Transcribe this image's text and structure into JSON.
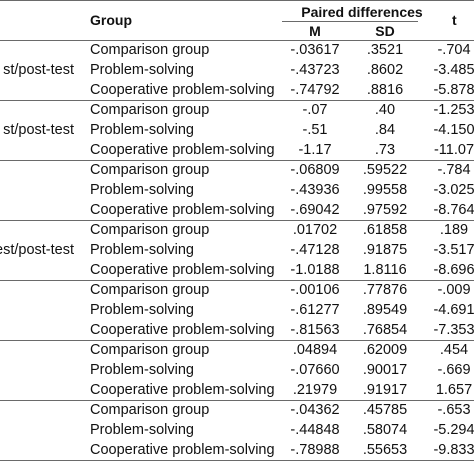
{
  "header": {
    "group": "Group",
    "paired_differences": "Paired differences",
    "m": "M",
    "sd": "SD",
    "t": "t"
  },
  "blocks": [
    {
      "label": "st/post-test",
      "rows": [
        {
          "group": "Comparison group",
          "m": "-.03617",
          "sd": ".3521",
          "t": "-.704"
        },
        {
          "group": "Problem-solving",
          "m": "-.43723",
          "sd": ".8602",
          "t": "-3.485"
        },
        {
          "group": "Cooperative problem-solving",
          "m": "-.74792",
          "sd": ".8816",
          "t": "-5.878"
        }
      ]
    },
    {
      "label": "st/post-test",
      "rows": [
        {
          "group": "Comparison group",
          "m": "-.07",
          "sd": ".40",
          "t": "-1.253"
        },
        {
          "group": "Problem-solving",
          "m": "-.51",
          "sd": ".84",
          "t": "-4.150"
        },
        {
          "group": "Cooperative problem-solving",
          "m": "-1.17",
          "sd": ".73",
          "t": "-11.07"
        }
      ]
    },
    {
      "label": "",
      "rows": [
        {
          "group": "Comparison group",
          "m": "-.06809",
          "sd": ".59522",
          "t": "-.784"
        },
        {
          "group": "Problem-solving",
          "m": "-.43936",
          "sd": ".99558",
          "t": "-3.025"
        },
        {
          "group": "Cooperative problem-solving",
          "m": "-.69042",
          "sd": ".97592",
          "t": "-8.764"
        }
      ]
    },
    {
      "label": "est/post-test",
      "rows": [
        {
          "group": "Comparison group",
          "m": ".01702",
          "sd": ".61858",
          "t": ".189"
        },
        {
          "group": "Problem-solving",
          "m": "-.47128",
          "sd": ".91875",
          "t": "-3.517"
        },
        {
          "group": "Cooperative problem-solving",
          "m": "-1.0188",
          "sd": "1.8116",
          "t": "-8.696"
        }
      ]
    },
    {
      "label": "",
      "rows": [
        {
          "group": "Comparison group",
          "m": "-.00106",
          "sd": ".77876",
          "t": "-.009"
        },
        {
          "group": "Problem-solving",
          "m": "-.61277",
          "sd": ".89549",
          "t": "-4.691"
        },
        {
          "group": "Cooperative problem-solving",
          "m": "-.81563",
          "sd": ".76854",
          "t": "-7.353"
        }
      ]
    },
    {
      "label": "",
      "rows": [
        {
          "group": "Comparison group",
          "m": ".04894",
          "sd": ".62009",
          "t": ".454"
        },
        {
          "group": "Problem-solving",
          "m": "-.07660",
          "sd": ".90017",
          "t": "-.669"
        },
        {
          "group": "Cooperative problem-solving",
          "m": ".21979",
          "sd": ".91917",
          "t": "1.657"
        }
      ]
    },
    {
      "label": "",
      "rows": [
        {
          "group": "Comparison group",
          "m": "-.04362",
          "sd": ".45785",
          "t": "-.653"
        },
        {
          "group": "Problem-solving",
          "m": "-.44848",
          "sd": ".58074",
          "t": "-5.294"
        },
        {
          "group": "Cooperative problem-solving",
          "m": "-.78988",
          "sd": ".55653",
          "t": "-9.833"
        }
      ]
    }
  ]
}
